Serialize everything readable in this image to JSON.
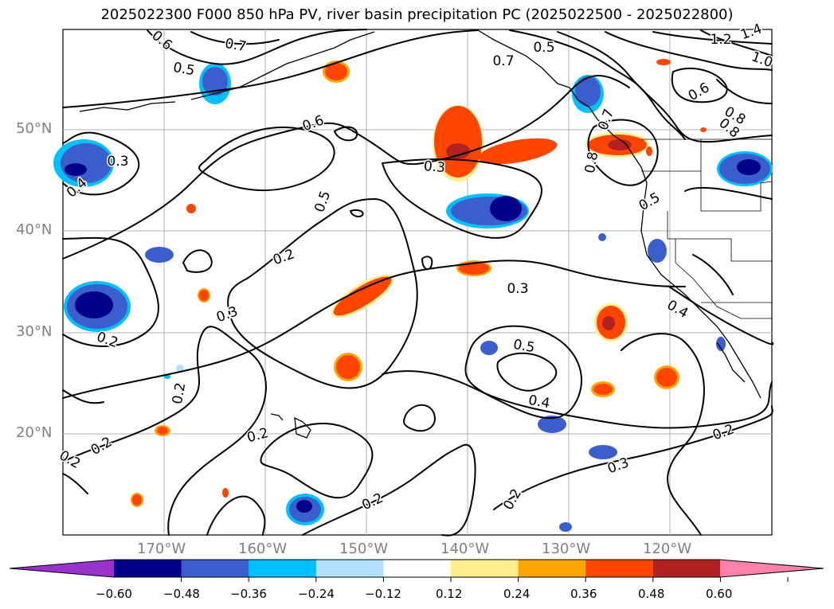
{
  "title": "2025022300 F000 850 hPa PV, river basin precipitation PC (2025022500 - 2025022800)",
  "map": {
    "lat_labels": [
      "50°N",
      "40°N",
      "30°N",
      "20°N"
    ],
    "lon_labels": [
      "170°W",
      "160°W",
      "150°W",
      "140°W",
      "130°W",
      "120°W"
    ],
    "contour_labels": [
      "0.6",
      "0.7",
      "0.5",
      "0.5",
      "0.7",
      "1.2",
      "1.4",
      "1.0",
      "0.8",
      "0.6",
      "0.8",
      "0.6",
      "0.3",
      "0.3",
      "0.4",
      "0.5",
      "0.2",
      "0.3",
      "0.2",
      "0.2",
      "0.2",
      "0.2",
      "0.3",
      "0.5",
      "0.4",
      "0.3",
      "0.2",
      "0.2",
      "0.2",
      "0.2",
      "0.4",
      "0.5",
      "0.8",
      "0.7"
    ]
  },
  "colorbar": {
    "ticks": [
      "−0.60",
      "−0.48",
      "−0.36",
      "−0.24",
      "−0.12",
      "0.12",
      "0.24",
      "0.36",
      "0.48",
      "0.60"
    ],
    "colors": [
      "#9932cc",
      "#00008b",
      "#3a5fcd",
      "#00bfff",
      "#b0e2ff",
      "#ffffff",
      "#ffec8b",
      "#ffa500",
      "#ff4500",
      "#b22222",
      "#ff82ab"
    ]
  }
}
